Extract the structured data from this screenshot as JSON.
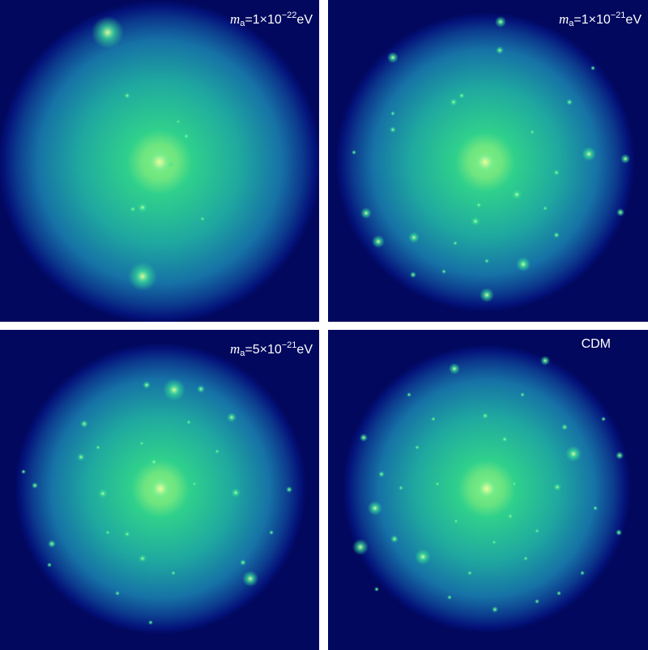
{
  "panels": [
    {
      "label": {
        "symbol": "m",
        "subscript": "a",
        "text": "=1×10",
        "exponent": "−22",
        "unit": "eV"
      },
      "halo_colors": {
        "core": "#ffff9a",
        "mid": "#2fd08c",
        "edge": "#0a2e8a",
        "background": "#01085e"
      }
    },
    {
      "label": {
        "symbol": "m",
        "subscript": "a",
        "text": "=1×10",
        "exponent": "−21",
        "unit": "eV"
      },
      "halo_colors": {
        "core": "#ffff9a",
        "mid": "#2fd08c",
        "edge": "#0a2e8a",
        "background": "#01085e"
      }
    },
    {
      "label": {
        "symbol": "m",
        "subscript": "a",
        "text": "=5×10",
        "exponent": "−21",
        "unit": "eV"
      },
      "halo_colors": {
        "core": "#ffff9a",
        "mid": "#2fd08c",
        "edge": "#0a2e8a",
        "background": "#01085e"
      }
    },
    {
      "label": {
        "plain": "CDM"
      },
      "halo_colors": {
        "core": "#ffff9a",
        "mid": "#2fd08c",
        "edge": "#0a2e8a",
        "background": "#01085e"
      }
    }
  ]
}
